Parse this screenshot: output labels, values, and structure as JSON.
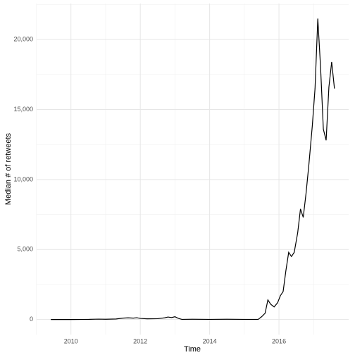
{
  "chart_data": {
    "type": "line",
    "xlabel": "Time",
    "ylabel": "Median # of retweets",
    "x": [
      2009.42,
      2010.0,
      2010.5,
      2010.8,
      2011.0,
      2011.3,
      2011.5,
      2011.65,
      2011.8,
      2011.9,
      2012.0,
      2012.2,
      2012.5,
      2012.7,
      2012.8,
      2012.9,
      2013.0,
      2013.1,
      2013.2,
      2013.5,
      2014.0,
      2014.5,
      2015.0,
      2015.4,
      2015.5,
      2015.6,
      2015.68,
      2015.76,
      2015.86,
      2015.96,
      2016.04,
      2016.12,
      2016.2,
      2016.28,
      2016.36,
      2016.44,
      2016.54,
      2016.62,
      2016.7,
      2016.78,
      2016.86,
      2016.96,
      2017.04,
      2017.12,
      2017.2,
      2017.28,
      2017.36,
      2017.44,
      2017.52,
      2017.6
    ],
    "series": [
      {
        "name": "median",
        "color": "#000000",
        "values": [
          0,
          0,
          10,
          30,
          20,
          40,
          100,
          120,
          100,
          130,
          80,
          50,
          60,
          120,
          180,
          140,
          200,
          80,
          10,
          20,
          10,
          20,
          10,
          10,
          200,
          450,
          1400,
          1100,
          900,
          1200,
          1700,
          2000,
          3500,
          4800,
          4500,
          4800,
          6200,
          7900,
          7300,
          9000,
          11000,
          13800,
          16500,
          21500,
          18000,
          13600,
          12800,
          16600,
          18400,
          16500
        ]
      }
    ],
    "xlim": [
      2009.01,
      2018.01
    ],
    "ylim": [
      -1075,
      22575
    ],
    "xticks": [
      2010,
      2012,
      2014,
      2016
    ],
    "yticks": [
      0,
      {
        "value": 5000,
        "label": "5,000"
      },
      {
        "value": 10000,
        "label": "10,000"
      },
      {
        "value": 15000,
        "label": "15,000"
      },
      {
        "value": 20000,
        "label": "20,000"
      }
    ],
    "xminorticks": [
      2009,
      2011,
      2013,
      2015,
      2017
    ],
    "yminorticks": [
      2500,
      7500,
      12500,
      17500,
      22500
    ],
    "grid": true
  }
}
